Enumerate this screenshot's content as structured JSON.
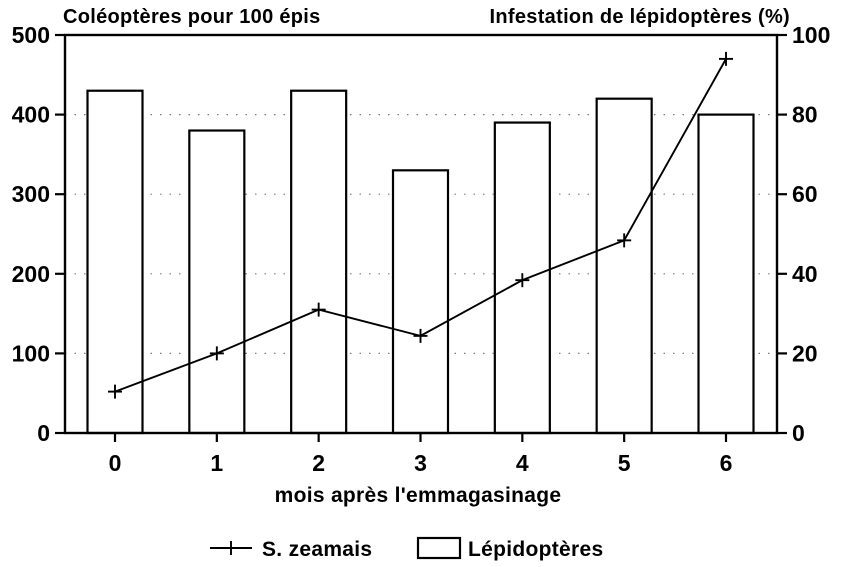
{
  "chart_data": {
    "type": "bar",
    "categories": [
      "0",
      "1",
      "2",
      "3",
      "4",
      "5",
      "6"
    ],
    "x_axis": {
      "label": "mois après l'emmagasinage"
    },
    "left_axis": {
      "title": "Coléoptères pour 100 épis",
      "min": 0,
      "max": 500,
      "ticks": [
        0,
        100,
        200,
        300,
        400,
        500
      ]
    },
    "right_axis": {
      "title": "Infestation de lépidoptères (%)",
      "min": 0,
      "max": 100,
      "ticks": [
        0,
        20,
        40,
        60,
        80,
        100
      ]
    },
    "series": [
      {
        "name": "S. zeamais",
        "type": "line",
        "axis": "left",
        "marker": "plus",
        "values": [
          52,
          100,
          155,
          122,
          192,
          242,
          470
        ]
      },
      {
        "name": "Lépidoptères",
        "type": "bar",
        "axis": "right",
        "fill": "open",
        "values": [
          86,
          76,
          86,
          66,
          78,
          84,
          80
        ]
      }
    ],
    "grid": "horizontal-dotted",
    "legend_position": "bottom",
    "colors": {
      "foreground": "#000000",
      "background": "#ffffff"
    }
  }
}
